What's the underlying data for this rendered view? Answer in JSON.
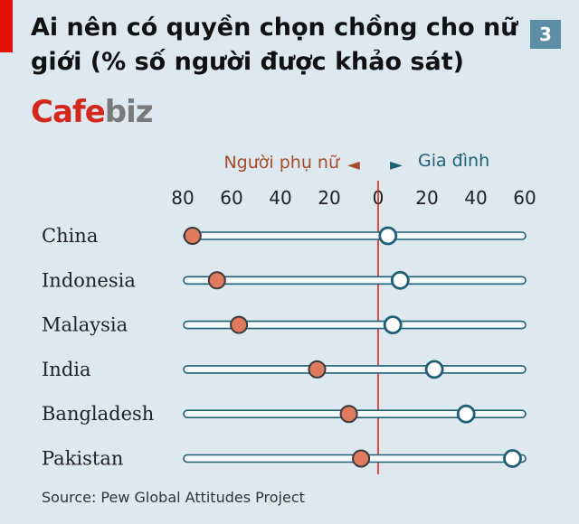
{
  "badge": "3",
  "title": "Ai nên có quyền chọn chồng cho nữ giới (% số người được khảo sát)",
  "logo": {
    "part1": "Cafe",
    "part2": "biz"
  },
  "source": "Source: Pew Global Attitudes Project",
  "colors": {
    "women": "#e07a5f",
    "family": "#ffffff",
    "family_stroke": "#1f5f75",
    "track": "#1f5f75",
    "zero_line": "#e3120b",
    "accent": "#e3120b"
  },
  "chart_data": {
    "type": "dot",
    "legend": [
      {
        "name": "Người phụ nữ",
        "marker": "◄",
        "color": "#a64b2a",
        "direction": "left"
      },
      {
        "name": "Gia đình",
        "marker": "►",
        "color": "#1f5f75",
        "direction": "right"
      }
    ],
    "x_ticks": [
      "80",
      "60",
      "40",
      "20",
      "0",
      "20",
      "40",
      "60"
    ],
    "x_range": [
      -80,
      60
    ],
    "categories": [
      "China",
      "Indonesia",
      "Malaysia",
      "India",
      "Bangladesh",
      "Pakistan"
    ],
    "series": [
      {
        "name": "Người phụ nữ",
        "values": [
          -76,
          -66,
          -57,
          -25,
          -12,
          -7
        ]
      },
      {
        "name": "Gia đình",
        "values": [
          4,
          9,
          6,
          23,
          36,
          55
        ]
      }
    ]
  }
}
